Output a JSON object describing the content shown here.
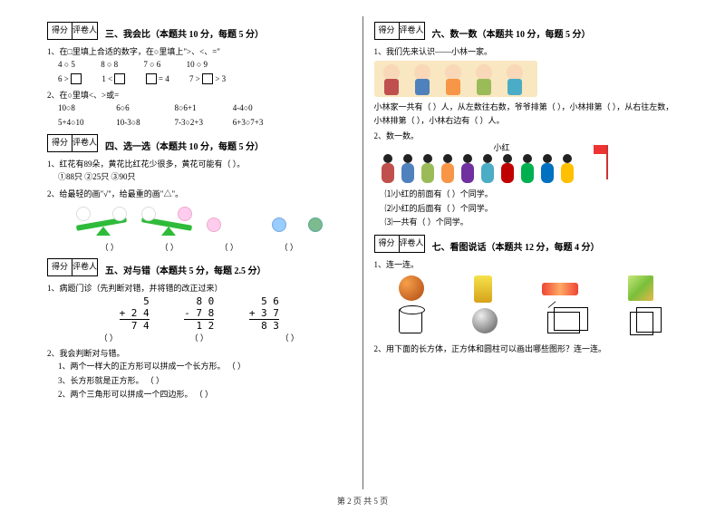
{
  "footer": "第 2 页  共 5 页",
  "scorebox": {
    "score": "得分",
    "grader": "评卷人"
  },
  "left": {
    "s3": {
      "title": "三、我会比（本题共 10 分，每题 5 分）",
      "q1": "1、在□里填上合适的数字，在○里填上\">、<、=\"",
      "row1": [
        "4 ○ 5",
        "8 ○ 8",
        "7 ○ 6",
        "10 ○ 9"
      ],
      "row2": [
        "6 > □",
        "1 < □",
        "□ = 4",
        "7 > □ > 3"
      ],
      "q2": "2、在○里填<、>或=",
      "grid": [
        [
          "10○8",
          "6○6",
          "8○6+1",
          "4-4○0"
        ],
        [
          "5+4○10",
          "10-3○8",
          "7-3○2+3",
          "6+3○7+3"
        ]
      ]
    },
    "s4": {
      "title": "四、选一选（本题共 10 分，每题 5 分）",
      "q1": "1、红花有89朵，黄花比红花少很多，黄花可能有（    ）。",
      "opts": "①88只        ②25只        ③90只",
      "q2": "2、给最轻的画\"√\"，给最重的画\"△\"。",
      "parens": [
        "（    ）",
        "（    ）",
        "（    ）",
        "（    ）"
      ]
    },
    "s5": {
      "title": "五、对与错（本题共 5 分，每题 2.5 分）",
      "q1": "1、病题门诊（先判断对错，并将错的改正过来）",
      "cols": [
        {
          "a": "5",
          "b": "+ 2 4",
          "s": "7 4"
        },
        {
          "a": "8 0",
          "b": "- 7 8",
          "s": "1 2"
        },
        {
          "a": "5 6",
          "b": "+ 3 7",
          "s": "8 3"
        }
      ],
      "parens": [
        "（    ）",
        "（    ）",
        "（    ）"
      ],
      "q2": "2、我会判断对与错。",
      "items": [
        "1、两个一样大的正方形可以拼成一个长方形。    （    ）",
        "3、长方形就是正方形。                      （    ）",
        "2、两个三角形可以拼成一个四边形。            （    ）"
      ]
    }
  },
  "right": {
    "s6": {
      "title": "六、数一数（本题共 10 分，每题 5 分）",
      "q1": "1、我们先来认识——小林一家。",
      "family_colors": [
        "#c0504d",
        "#4f81bd",
        "#f79646",
        "#9bbb59",
        "#4bacc6"
      ],
      "t1": "小林家一共有（   ）人，从左数往右数，爷爷排第（   ），小林排第（   ），从右往左数，",
      "t2": "小林排第（   ），小林右边有（   ）人。",
      "q2": "2、数一数。",
      "xh": "小红",
      "kids_colors": [
        "#c0504d",
        "#4f81bd",
        "#9bbb59",
        "#f79646",
        "#7030a0",
        "#4bacc6",
        "#c00000",
        "#00b050",
        "#0070c0",
        "#ffc000"
      ],
      "sub": [
        "⑴小红的前面有（      ）个同学。",
        "⑵小红的后面有（      ）个同学。",
        "⑶一共有（          ）个同学。"
      ]
    },
    "s7": {
      "title": "七、看图说话（本题共 12 分，每题 4 分）",
      "q1": "1、连一连。",
      "q2": "2、用下面的长方体，正方体和圆柱可以画出哪些图形？连一连。"
    }
  }
}
